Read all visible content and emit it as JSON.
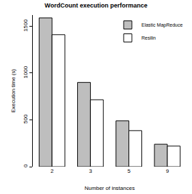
{
  "chart_data": {
    "type": "bar",
    "title": "WordCount execution performance",
    "x_label": "Number of instances",
    "y_label": "Execution time (s)",
    "categories": [
      "2",
      "3",
      "5",
      "9"
    ],
    "series": [
      {
        "name": "Elastic MapReduce",
        "color": "#bebebe",
        "values": [
          1590,
          900,
          490,
          240
        ]
      },
      {
        "name": "Resilin",
        "color": "#ffffff",
        "values": [
          1410,
          715,
          385,
          220
        ]
      }
    ],
    "ylim": [
      0,
      1620
    ],
    "yticks": [
      0,
      500,
      1000,
      1500
    ],
    "grid": false,
    "legend": "top right"
  }
}
